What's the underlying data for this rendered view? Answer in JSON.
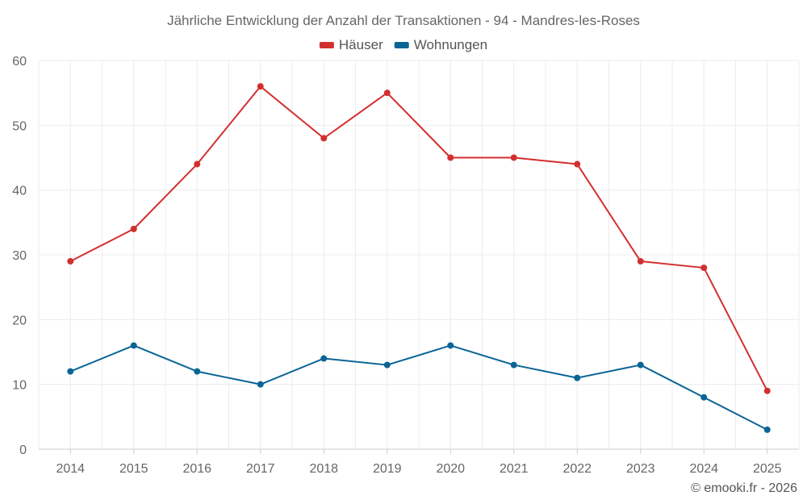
{
  "chart_data": {
    "type": "line",
    "title": "Jährliche Entwicklung der Anzahl der Transaktionen - 94 - Mandres-les-Roses",
    "categories": [
      "2014",
      "2015",
      "2016",
      "2017",
      "2018",
      "2019",
      "2020",
      "2021",
      "2022",
      "2023",
      "2024",
      "2025"
    ],
    "series": [
      {
        "name": "Häuser",
        "color": "#d32f2f",
        "values": [
          29,
          34,
          44,
          56,
          48,
          55,
          45,
          45,
          44,
          29,
          28,
          9
        ]
      },
      {
        "name": "Wohnungen",
        "color": "#0a6496",
        "values": [
          12,
          16,
          12,
          10,
          14,
          13,
          16,
          13,
          11,
          13,
          8,
          3
        ]
      }
    ],
    "ylim": [
      0,
      60
    ],
    "yticks": [
      "0",
      "10",
      "20",
      "30",
      "40",
      "50",
      "60"
    ],
    "xlabel": "",
    "ylabel": "",
    "grid": true,
    "legend": "top-center"
  },
  "credit": "© emooki.fr - 2026"
}
